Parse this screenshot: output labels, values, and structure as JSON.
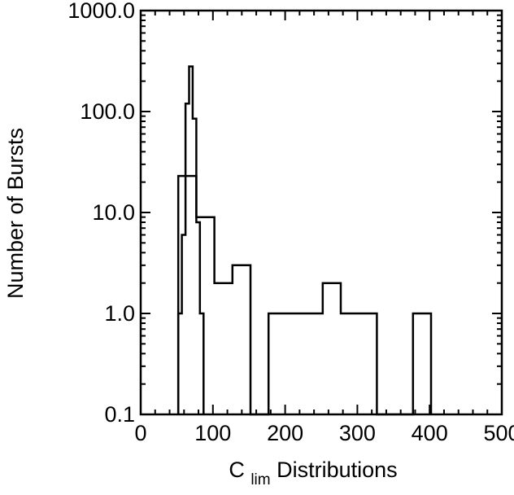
{
  "chart_data": {
    "type": "histogram",
    "xlabel": {
      "main": "C",
      "subscript": "lim",
      "rest": " Distributions"
    },
    "ylabel": "Number of Bursts",
    "xlim": [
      0,
      500
    ],
    "ylim": [
      0.1,
      1000
    ],
    "y_scale": "log",
    "x_ticks": [
      0,
      100,
      200,
      300,
      400,
      500
    ],
    "x_tick_labels": [
      "0",
      "100",
      "200",
      "300",
      "400",
      "500"
    ],
    "y_ticks": [
      0.1,
      1,
      10,
      100,
      1000
    ],
    "y_tick_labels": [
      "0.1",
      "1.0",
      "10.0",
      "100.0",
      "1000.0"
    ],
    "grid": false,
    "series": [
      {
        "bins": [
          {
            "x0": 52,
            "x1": 57,
            "y": 1
          },
          {
            "x0": 57,
            "x1": 62,
            "y": 6
          },
          {
            "x0": 62,
            "x1": 67,
            "y": 120
          },
          {
            "x0": 67,
            "x1": 72,
            "y": 280
          },
          {
            "x0": 72,
            "x1": 77,
            "y": 85
          },
          {
            "x0": 77,
            "x1": 82,
            "y": 8
          },
          {
            "x0": 82,
            "x1": 87,
            "y": 1
          }
        ]
      },
      {
        "bins": [
          {
            "x0": 52,
            "x1": 77,
            "y": 23
          },
          {
            "x0": 77,
            "x1": 102,
            "y": 9
          },
          {
            "x0": 102,
            "x1": 127,
            "y": 2
          },
          {
            "x0": 127,
            "x1": 152,
            "y": 3
          },
          {
            "x0": 152,
            "x1": 177,
            "y": 0
          },
          {
            "x0": 177,
            "x1": 202,
            "y": 1
          },
          {
            "x0": 202,
            "x1": 227,
            "y": 1
          },
          {
            "x0": 227,
            "x1": 252,
            "y": 1
          },
          {
            "x0": 252,
            "x1": 277,
            "y": 2
          },
          {
            "x0": 277,
            "x1": 302,
            "y": 1
          },
          {
            "x0": 302,
            "x1": 327,
            "y": 1
          },
          {
            "x0": 327,
            "x1": 352,
            "y": 0
          },
          {
            "x0": 352,
            "x1": 377,
            "y": 0
          },
          {
            "x0": 377,
            "x1": 402,
            "y": 1
          }
        ]
      }
    ]
  }
}
